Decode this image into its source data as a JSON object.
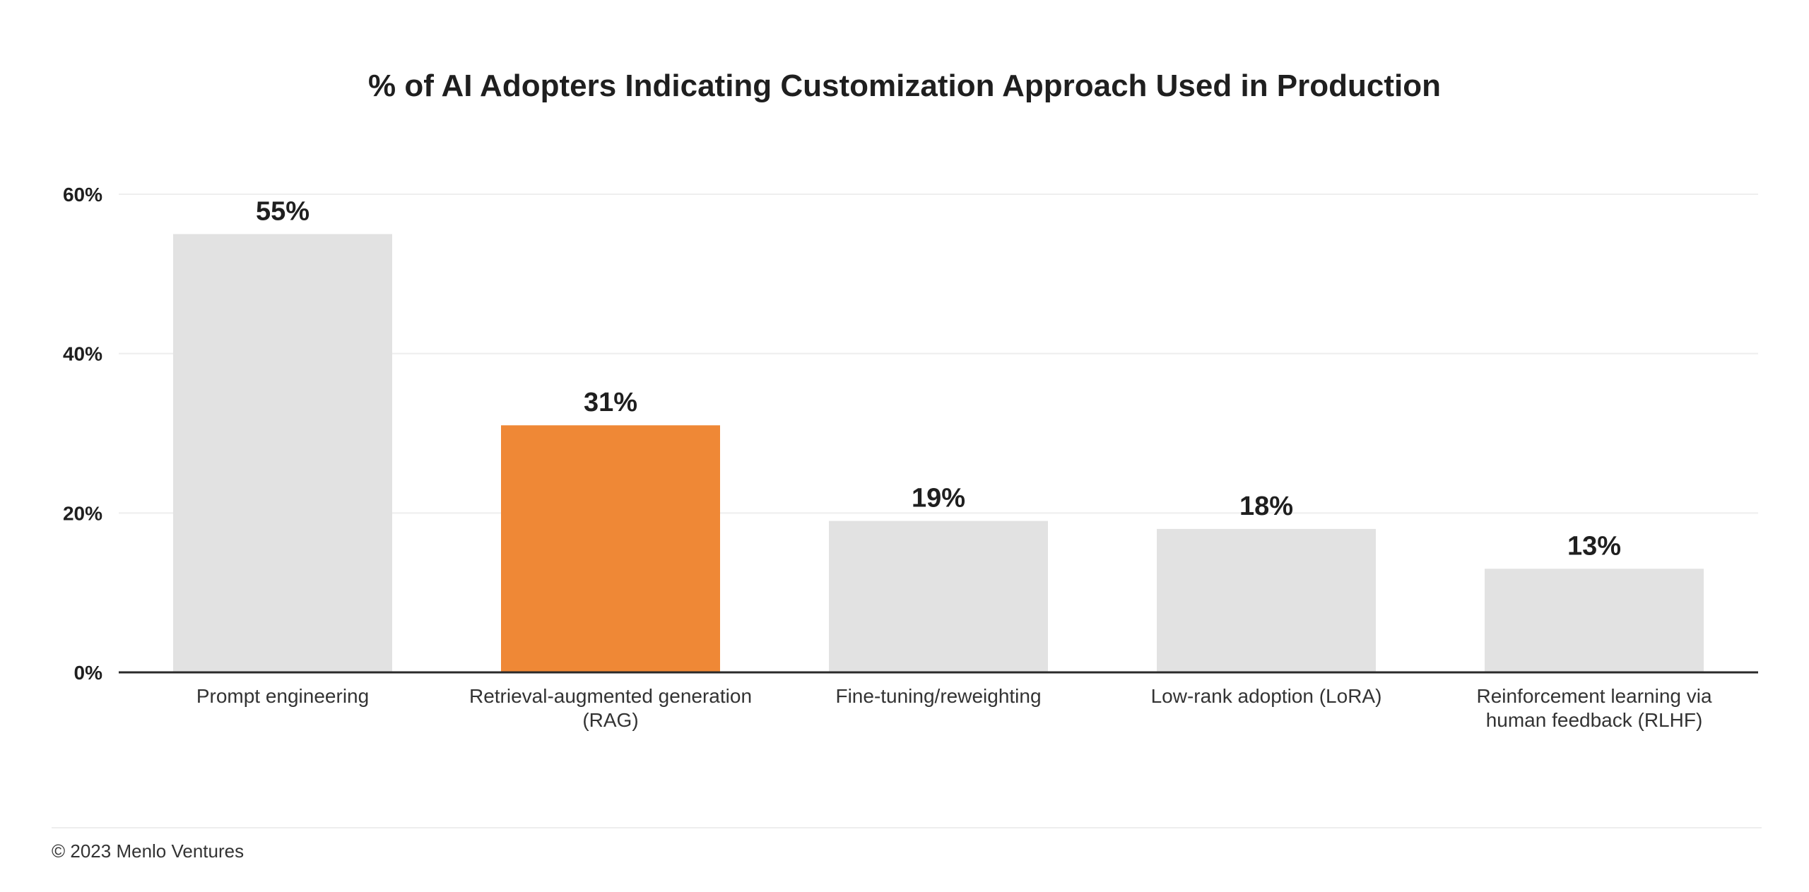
{
  "chart_data": {
    "type": "bar",
    "title": "% of AI Adopters Indicating Customization Approach Used in Production",
    "categories": [
      [
        "Prompt engineering"
      ],
      [
        "Retrieval-augmented generation",
        "(RAG)"
      ],
      [
        "Fine-tuning/reweighting"
      ],
      [
        "Low-rank adoption (LoRA)"
      ],
      [
        "Reinforcement learning via",
        "human feedback (RLHF)"
      ]
    ],
    "values": [
      55,
      31,
      19,
      18,
      13
    ],
    "data_labels": [
      "55%",
      "31%",
      "19%",
      "18%",
      "13%"
    ],
    "bar_colors": [
      "#e2e2e2",
      "#ef8836",
      "#e2e2e2",
      "#e2e2e2",
      "#e2e2e2"
    ],
    "highlight_index": 1,
    "yticks": [
      0,
      20,
      40,
      60
    ],
    "ytick_labels": [
      "0%",
      "20%",
      "40%",
      "60%"
    ],
    "ylim": [
      0,
      60
    ],
    "xlabel": "",
    "ylabel": "",
    "grid": true,
    "legend": "none"
  },
  "footer": {
    "copyright": "© 2023 Menlo Ventures"
  }
}
